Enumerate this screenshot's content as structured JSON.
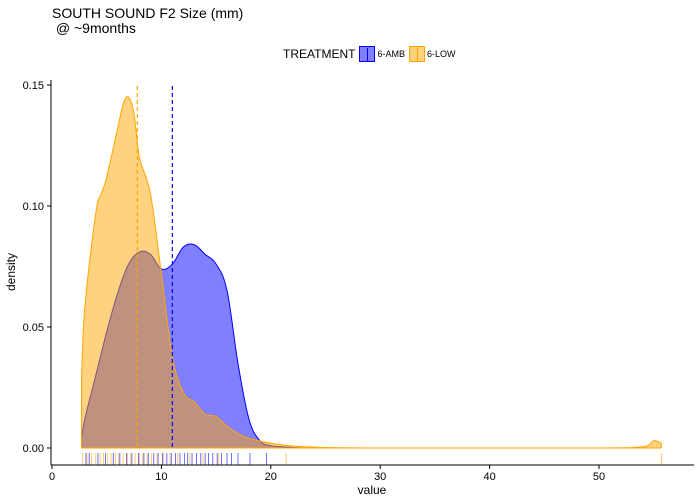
{
  "title": "SOUTH SOUND F2 Size (mm)",
  "subtitle": " @ ~9months",
  "legend": {
    "title": "TREATMENT",
    "items": [
      {
        "label": "6-AMB",
        "fill": "#0000ff",
        "stroke": "#0000ff"
      },
      {
        "label": "6-LOW",
        "fill": "#ffa500",
        "stroke": "#ffa500"
      }
    ]
  },
  "chart_data": {
    "type": "area",
    "title": "SOUTH SOUND F2 Size (mm)\n @ ~9months",
    "xlabel": "value",
    "ylabel": "density",
    "xlim": [
      0,
      58
    ],
    "ylim": [
      -0.006,
      0.152
    ],
    "x_ticks": [
      0,
      10,
      20,
      30,
      40,
      50
    ],
    "y_ticks": [
      0.0,
      0.05,
      0.1,
      0.15
    ],
    "y_tick_labels": [
      "0.00",
      "0.05",
      "0.10",
      "0.15"
    ],
    "grid": false,
    "legend_position": "top",
    "series": [
      {
        "name": "6-AMB",
        "color": "#0000ff",
        "mean": 11.0,
        "x": [
          2.7,
          3,
          4,
          5,
          6,
          7,
          8,
          9,
          10,
          11,
          12,
          13,
          14,
          15,
          16,
          17,
          18,
          19,
          20,
          21,
          22,
          23
        ],
        "y": [
          0.004,
          0.012,
          0.03,
          0.048,
          0.064,
          0.076,
          0.081,
          0.08,
          0.074,
          0.076,
          0.083,
          0.084,
          0.08,
          0.076,
          0.065,
          0.035,
          0.012,
          0.003,
          0.001,
          0.0005,
          0.0002,
          0.0
        ]
      },
      {
        "name": "6-LOW",
        "color": "#ffa500",
        "mean": 7.8,
        "x": [
          2.7,
          3,
          4,
          4.5,
          5,
          6,
          6.5,
          7,
          7.5,
          8,
          9,
          10,
          11,
          12,
          13,
          14,
          15,
          16,
          17,
          18,
          20,
          22,
          25,
          30,
          40,
          50,
          54,
          55,
          55.7
        ],
        "y": [
          0.029,
          0.058,
          0.097,
          0.105,
          0.112,
          0.132,
          0.142,
          0.145,
          0.138,
          0.12,
          0.105,
          0.072,
          0.038,
          0.023,
          0.019,
          0.014,
          0.013,
          0.009,
          0.006,
          0.004,
          0.002,
          0.0008,
          0.0002,
          0.0,
          0.0,
          0.0,
          0.0005,
          0.003,
          0.002
        ]
      }
    ],
    "rug": {
      "6-AMB": [
        3.1,
        3.4,
        4.2,
        4.9,
        5.6,
        6.2,
        6.8,
        7.3,
        7.9,
        8.4,
        8.8,
        9.3,
        9.7,
        10.1,
        10.5,
        10.9,
        11.3,
        11.7,
        12.1,
        12.4,
        12.8,
        13.2,
        13.6,
        14.0,
        14.3,
        14.7,
        15.1,
        15.5,
        16.0,
        16.4,
        17.0,
        18.1,
        19.6
      ],
      "6-LOW": [
        2.8,
        3.2,
        3.6,
        4.0,
        4.4,
        4.7,
        5.1,
        5.4,
        5.8,
        6.1,
        6.5,
        6.9,
        7.2,
        7.6,
        8.0,
        8.3,
        8.7,
        9.1,
        9.6,
        10.2,
        10.8,
        11.5,
        12.6,
        13.8,
        15.2,
        21.4,
        55.7
      ]
    }
  }
}
